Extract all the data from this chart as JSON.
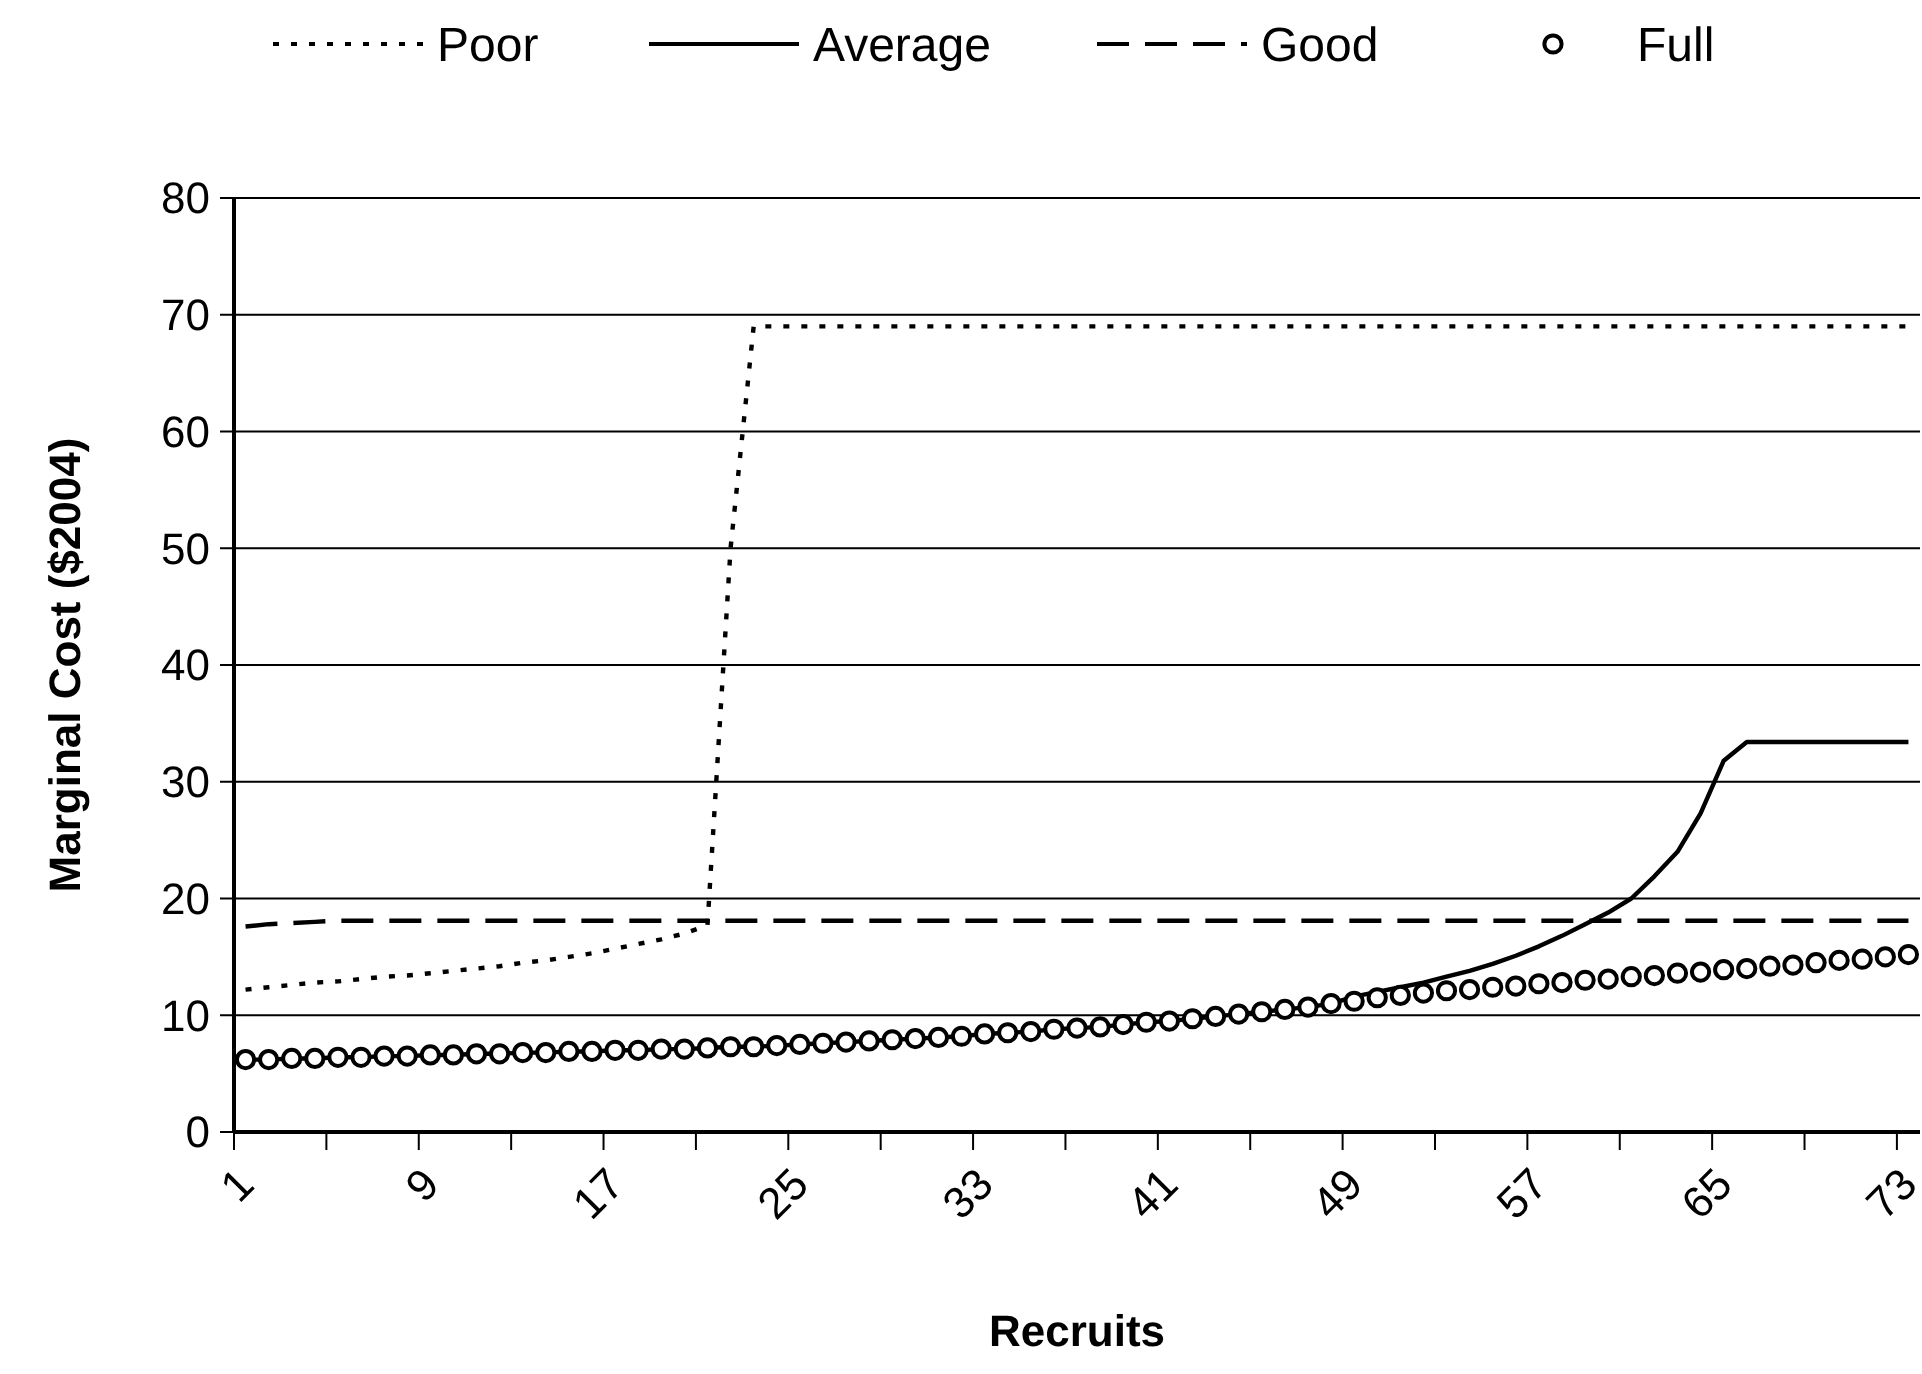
{
  "chart_data": {
    "type": "line",
    "xlabel": "Recruits",
    "ylabel": "Marginal Cost ($2004)",
    "categories": [
      "1",
      null,
      null,
      null,
      null,
      null,
      null,
      null,
      "9",
      null,
      null,
      null,
      null,
      null,
      null,
      null,
      "17",
      null,
      null,
      null,
      null,
      null,
      null,
      null,
      "25",
      null,
      null,
      null,
      null,
      null,
      null,
      null,
      "33",
      null,
      null,
      null,
      null,
      null,
      null,
      null,
      "41",
      null,
      null,
      null,
      null,
      null,
      null,
      null,
      "49",
      null,
      null,
      null,
      null,
      null,
      null,
      null,
      "57",
      null,
      null,
      null,
      null,
      null,
      null,
      null,
      "65",
      null,
      null,
      null,
      null,
      null,
      null,
      null,
      "73"
    ],
    "series": [
      {
        "name": "Poor",
        "color": "#000000",
        "line_style": "dotted",
        "marker": "none",
        "values": [
          12.2,
          12.4,
          12.6,
          12.8,
          12.9,
          13.1,
          13.3,
          13.4,
          13.6,
          13.8,
          14.0,
          14.2,
          14.5,
          14.7,
          15.0,
          15.3,
          15.7,
          16.1,
          16.5,
          17.0,
          17.7,
          50,
          69,
          69,
          69,
          69,
          69,
          69,
          69,
          69,
          69,
          69,
          69,
          69,
          69,
          69,
          69,
          69,
          69,
          69,
          69,
          69,
          69,
          69,
          69,
          69,
          69,
          69,
          69,
          69,
          69,
          69,
          69,
          69,
          69,
          69,
          69,
          69,
          69,
          69,
          69,
          69,
          69,
          69,
          69,
          69,
          69,
          69,
          69,
          69,
          69,
          69,
          69
        ]
      },
      {
        "name": "Average",
        "color": "#000000",
        "line_style": "solid",
        "marker": "none",
        "values": [
          6.2,
          6.2,
          6.3,
          6.3,
          6.4,
          6.4,
          6.5,
          6.5,
          6.6,
          6.6,
          6.7,
          6.7,
          6.8,
          6.8,
          6.9,
          6.9,
          7.0,
          7.0,
          7.1,
          7.1,
          7.2,
          7.3,
          7.3,
          7.4,
          7.5,
          7.6,
          7.7,
          7.8,
          7.9,
          8.0,
          8.1,
          8.2,
          8.4,
          8.5,
          8.6,
          8.8,
          8.9,
          9.0,
          9.2,
          9.4,
          9.5,
          9.7,
          9.9,
          10.1,
          10.3,
          10.5,
          10.7,
          11.0,
          11.6,
          12.0,
          12.4,
          12.8,
          13.3,
          13.8,
          14.4,
          15.1,
          15.9,
          16.8,
          17.8,
          18.8,
          20.0,
          21.9,
          24.0,
          27.3,
          31.8,
          33.4,
          33.4,
          33.4,
          33.4,
          33.4,
          33.4,
          33.4,
          33.4
        ]
      },
      {
        "name": "Good",
        "color": "#000000",
        "line_style": "dashed",
        "marker": "none",
        "values": [
          17.6,
          17.8,
          17.9,
          18.0,
          18.1,
          18.1,
          18.1,
          18.1,
          18.1,
          18.1,
          18.1,
          18.1,
          18.1,
          18.1,
          18.1,
          18.1,
          18.1,
          18.1,
          18.1,
          18.1,
          18.1,
          18.1,
          18.1,
          18.1,
          18.1,
          18.1,
          18.1,
          18.1,
          18.1,
          18.1,
          18.1,
          18.1,
          18.1,
          18.1,
          18.1,
          18.1,
          18.1,
          18.1,
          18.1,
          18.1,
          18.1,
          18.1,
          18.1,
          18.1,
          18.1,
          18.1,
          18.1,
          18.1,
          18.1,
          18.1,
          18.1,
          18.1,
          18.1,
          18.1,
          18.1,
          18.1,
          18.1,
          18.1,
          18.1,
          18.1,
          18.1,
          18.1,
          18.1,
          18.1,
          18.1,
          18.1,
          18.1,
          18.1,
          18.1,
          18.1,
          18.1,
          18.1,
          18.1
        ]
      },
      {
        "name": "Full",
        "type": "scatter",
        "color": "#000000",
        "marker": "circle",
        "values": [
          6.2,
          6.2,
          6.3,
          6.3,
          6.4,
          6.4,
          6.5,
          6.5,
          6.6,
          6.6,
          6.7,
          6.7,
          6.8,
          6.8,
          6.9,
          6.9,
          7.0,
          7.0,
          7.1,
          7.1,
          7.2,
          7.3,
          7.3,
          7.4,
          7.5,
          7.6,
          7.7,
          7.8,
          7.9,
          8.0,
          8.1,
          8.2,
          8.4,
          8.5,
          8.6,
          8.8,
          8.9,
          9.0,
          9.2,
          9.4,
          9.5,
          9.7,
          9.9,
          10.1,
          10.3,
          10.5,
          10.7,
          11.0,
          11.2,
          11.5,
          11.7,
          11.9,
          12.1,
          12.2,
          12.4,
          12.5,
          12.7,
          12.8,
          13.0,
          13.1,
          13.3,
          13.4,
          13.6,
          13.7,
          13.9,
          14.0,
          14.2,
          14.3,
          14.5,
          14.7,
          14.8,
          15.0,
          15.2
        ]
      }
    ],
    "ylim": [
      0,
      80
    ],
    "yticks": [
      0,
      10,
      20,
      30,
      40,
      50,
      60,
      70,
      80
    ],
    "grid": "y",
    "legend": "top"
  }
}
